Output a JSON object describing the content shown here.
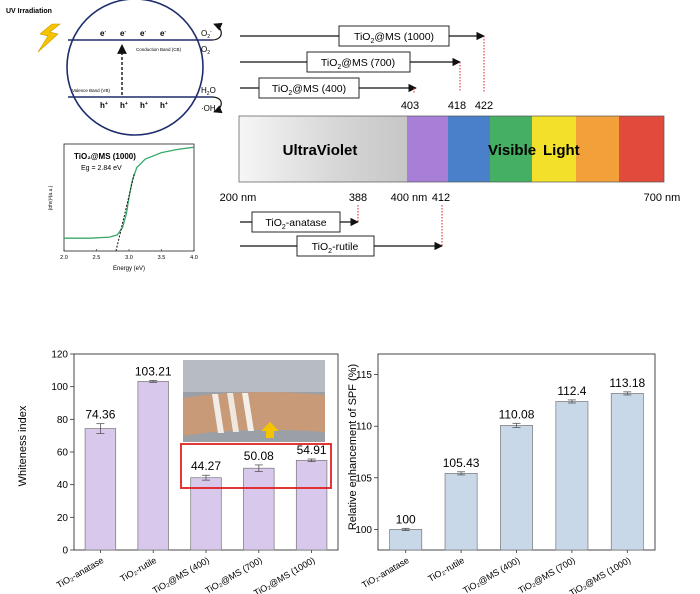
{
  "band_diagram": {
    "uv_label": "UV Irradiation",
    "cb_label": "Conduction Band (CB)",
    "vb_label": "Valence Band (VB)",
    "electron": "e",
    "hole": "h",
    "o2_minus_base": "O",
    "o2_base": "O",
    "h2o_base": "H",
    "oh_label": "·OH"
  },
  "tauc_plot": {
    "sample": "TiO₂@MS (1000)",
    "eg": "Eg = 2.84 eV",
    "ylabel": "(αhν)²(a.u.)",
    "xlabel": "Energy (eV)",
    "xticks": [
      "2.0",
      "2.5",
      "3.0",
      "3.5",
      "4.0"
    ],
    "xlim": [
      2.0,
      4.0
    ],
    "onset_eV": 2.84,
    "curve": [
      [
        2.0,
        0.12
      ],
      [
        2.4,
        0.12
      ],
      [
        2.7,
        0.13
      ],
      [
        2.82,
        0.15
      ],
      [
        2.9,
        0.22
      ],
      [
        2.96,
        0.35
      ],
      [
        3.0,
        0.5
      ],
      [
        3.05,
        0.66
      ],
      [
        3.12,
        0.78
      ],
      [
        3.25,
        0.86
      ],
      [
        3.5,
        0.92
      ],
      [
        3.75,
        0.95
      ],
      [
        4.0,
        0.97
      ]
    ]
  },
  "spectrum": {
    "uv_label": "UltraViolet",
    "vis_label1": "Visible",
    "vis_label2": "Light",
    "axis_labels": [
      "200 nm",
      "388",
      "400 nm",
      "412",
      "700 nm"
    ],
    "top_marks": [
      "403",
      "418",
      "422"
    ],
    "arrows_top": [
      {
        "base": "TiO",
        "sub": "2",
        "rest": "@MS (1000)",
        "edge": 422
      },
      {
        "base": "TiO",
        "sub": "2",
        "rest": "@MS (700)",
        "edge": 418
      },
      {
        "base": "TiO",
        "sub": "2",
        "rest": "@MS (400)",
        "edge": 403
      }
    ],
    "arrows_bottom": [
      {
        "base": "TiO",
        "sub": "2",
        "rest": "-anatase",
        "edge": 388
      },
      {
        "base": "TiO",
        "sub": "2",
        "rest": "-rutile",
        "edge": 412
      }
    ],
    "colors": {
      "marker": "#e02020"
    }
  },
  "chart_data": [
    {
      "type": "bar",
      "ylabel": "Whiteness index",
      "ylim": [
        0,
        120
      ],
      "yticks": [
        "0",
        "20",
        "40",
        "60",
        "80",
        "100",
        "120"
      ],
      "categories": [
        "TiO₂-anatase",
        "TiO₂-rutile",
        "TiO₂@MS (400)",
        "TiO₂@MS (700)",
        "TiO₂@MS (1000)"
      ],
      "values": [
        74.36,
        103.21,
        44.27,
        50.08,
        54.91
      ],
      "value_labels": [
        "74.36",
        "103.21",
        "44.27",
        "50.08",
        "54.91"
      ],
      "errors": [
        3.0,
        0.6,
        1.5,
        2.0,
        0.8
      ],
      "bar_color": "#d8c8ec",
      "highlight_box_color": "#e02020",
      "arrow_color": "#f5c400"
    },
    {
      "type": "bar",
      "ylabel": "Relative enhancement of SPF (%)",
      "ylim": [
        98,
        117
      ],
      "yticks": [
        "100",
        "105",
        "110",
        "115"
      ],
      "categories": [
        "TiO₂-anatase",
        "TiO₂-rutile",
        "TiO₂@MS (400)",
        "TiO₂@MS (700)",
        "TiO₂@MS (1000)"
      ],
      "values": [
        100,
        105.43,
        110.08,
        112.4,
        113.18
      ],
      "value_labels": [
        "100",
        "105.43",
        "110.08",
        "112.4",
        "113.18"
      ],
      "errors": [
        0.1,
        0.15,
        0.2,
        0.15,
        0.15
      ],
      "bar_color": "#c9d8e8"
    }
  ]
}
